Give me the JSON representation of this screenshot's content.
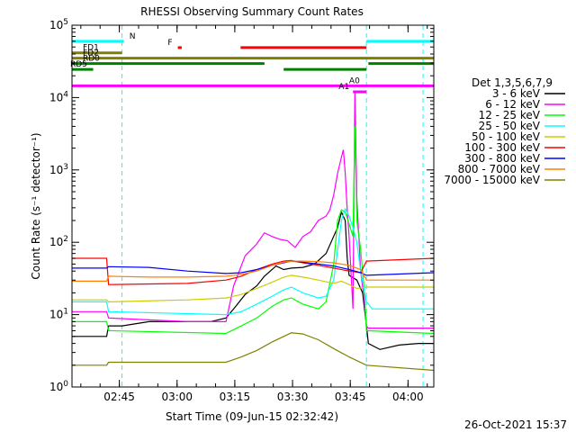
{
  "chart_data": {
    "type": "line",
    "title": "RHESSI Observing Summary Count Rates",
    "xlabel": "Start Time (09-Jun-15 02:32:42)",
    "ylabel": "Count Rate (s⁻¹ detector⁻¹)",
    "y_scale": "log",
    "ylim": [
      1,
      100000
    ],
    "xlim_minutes_from_start": [
      0,
      94
    ],
    "x_ticks": [
      {
        "label": "02:45",
        "t": 12.3
      },
      {
        "label": "03:00",
        "t": 27.3
      },
      {
        "label": "03:15",
        "t": 42.3
      },
      {
        "label": "03:30",
        "t": 57.3
      },
      {
        "label": "03:45",
        "t": 72.3
      },
      {
        "label": "04:00",
        "t": 87.3
      }
    ],
    "y_ticks": [
      {
        "exp": 0,
        "value": 1
      },
      {
        "exp": 1,
        "value": 10
      },
      {
        "exp": 2,
        "value": 100
      },
      {
        "exp": 3,
        "value": 1000
      },
      {
        "exp": 4,
        "value": 10000
      },
      {
        "exp": 5,
        "value": 100000
      }
    ],
    "legend_title": "Det 1,3,5,6,7,9",
    "legend_position": "right",
    "vlines_minutes": [
      13.0,
      76.5,
      91.2
    ],
    "series": [
      {
        "name": "3 - 6 keV",
        "color": "#000000",
        "points": [
          [
            0,
            5
          ],
          [
            9,
            5
          ],
          [
            9.5,
            7
          ],
          [
            13,
            7
          ],
          [
            20,
            8
          ],
          [
            30,
            8
          ],
          [
            36,
            8
          ],
          [
            40,
            9
          ],
          [
            42,
            12
          ],
          [
            45,
            19
          ],
          [
            48,
            25
          ],
          [
            50,
            34
          ],
          [
            53,
            47
          ],
          [
            55,
            42
          ],
          [
            57,
            44
          ],
          [
            60,
            45
          ],
          [
            63,
            50
          ],
          [
            66,
            70
          ],
          [
            69,
            160
          ],
          [
            70,
            260
          ],
          [
            71,
            200
          ],
          [
            71.5,
            60
          ],
          [
            72,
            35
          ],
          [
            74,
            30
          ],
          [
            75.5,
            20
          ],
          [
            76.5,
            7
          ],
          [
            77,
            4
          ],
          [
            80,
            3.3
          ],
          [
            85,
            3.8
          ],
          [
            90,
            4
          ],
          [
            94,
            4
          ]
        ]
      },
      {
        "name": "6 - 12 keV",
        "color": "#ff00ff",
        "points": [
          [
            0,
            11
          ],
          [
            9,
            11
          ],
          [
            9.5,
            9
          ],
          [
            30,
            8
          ],
          [
            40,
            8
          ],
          [
            42,
            25
          ],
          [
            45,
            65
          ],
          [
            48,
            95
          ],
          [
            50,
            135
          ],
          [
            52,
            120
          ],
          [
            54,
            110
          ],
          [
            56,
            105
          ],
          [
            58,
            85
          ],
          [
            60,
            120
          ],
          [
            62,
            140
          ],
          [
            64,
            200
          ],
          [
            66,
            230
          ],
          [
            67,
            280
          ],
          [
            68,
            450
          ],
          [
            69,
            900
          ],
          [
            70,
            1500
          ],
          [
            70.5,
            1900
          ],
          [
            71,
            900
          ],
          [
            71.5,
            280
          ],
          [
            72,
            120
          ],
          [
            73,
            12
          ],
          [
            73.5,
            12000
          ],
          [
            74,
            400
          ],
          [
            75,
            40
          ],
          [
            76,
            15
          ],
          [
            76.5,
            7
          ],
          [
            77,
            6.5
          ],
          [
            94,
            6.5
          ]
        ]
      },
      {
        "name": "12 - 25 keV",
        "color": "#00ff00",
        "points": [
          [
            0,
            8
          ],
          [
            9,
            8
          ],
          [
            9.5,
            6
          ],
          [
            40,
            5.5
          ],
          [
            44,
            7
          ],
          [
            48,
            9
          ],
          [
            52,
            13
          ],
          [
            55,
            16
          ],
          [
            57,
            17
          ],
          [
            60,
            14
          ],
          [
            64,
            12
          ],
          [
            66,
            15
          ],
          [
            68,
            50
          ],
          [
            69,
            200
          ],
          [
            70,
            280
          ],
          [
            71,
            260
          ],
          [
            72,
            180
          ],
          [
            73,
            120
          ],
          [
            73.5,
            4000
          ],
          [
            74,
            200
          ],
          [
            75,
            80
          ],
          [
            76,
            20
          ],
          [
            76.5,
            6
          ],
          [
            94,
            5.5
          ]
        ]
      },
      {
        "name": "25 - 50 keV",
        "color": "#00ffff",
        "points": [
          [
            0,
            15
          ],
          [
            9,
            15
          ],
          [
            9.5,
            11
          ],
          [
            40,
            10
          ],
          [
            44,
            11
          ],
          [
            48,
            14
          ],
          [
            52,
            18
          ],
          [
            55,
            22
          ],
          [
            57,
            24
          ],
          [
            60,
            20
          ],
          [
            64,
            17
          ],
          [
            66,
            18
          ],
          [
            68,
            30
          ],
          [
            70,
            200
          ],
          [
            71,
            290
          ],
          [
            72,
            230
          ],
          [
            73,
            160
          ],
          [
            74,
            100
          ],
          [
            75,
            40
          ],
          [
            76.5,
            15
          ],
          [
            78,
            12
          ],
          [
            94,
            12
          ]
        ]
      },
      {
        "name": "50 - 100 keV",
        "color": "#cccc00",
        "points": [
          [
            0,
            16
          ],
          [
            9,
            16
          ],
          [
            9.5,
            15
          ],
          [
            30,
            16
          ],
          [
            40,
            17
          ],
          [
            44,
            19
          ],
          [
            48,
            23
          ],
          [
            52,
            28
          ],
          [
            55,
            33
          ],
          [
            57,
            35
          ],
          [
            60,
            33
          ],
          [
            64,
            30
          ],
          [
            68,
            27
          ],
          [
            70,
            29
          ],
          [
            72,
            26
          ],
          [
            74,
            23
          ],
          [
            76.5,
            24
          ],
          [
            94,
            24
          ]
        ]
      },
      {
        "name": "100 - 300 keV",
        "color": "#ff0000",
        "points": [
          [
            0,
            60
          ],
          [
            9,
            60
          ],
          [
            9.5,
            26
          ],
          [
            30,
            27
          ],
          [
            40,
            30
          ],
          [
            44,
            34
          ],
          [
            48,
            42
          ],
          [
            52,
            50
          ],
          [
            55,
            55
          ],
          [
            57,
            56
          ],
          [
            60,
            52
          ],
          [
            64,
            48
          ],
          [
            68,
            44
          ],
          [
            72,
            40
          ],
          [
            75,
            38
          ],
          [
            76.5,
            55
          ],
          [
            94,
            60
          ]
        ]
      },
      {
        "name": "300 - 800 keV",
        "color": "#0000ff",
        "points": [
          [
            0,
            44
          ],
          [
            9,
            44
          ],
          [
            9.5,
            46
          ],
          [
            20,
            45
          ],
          [
            30,
            40
          ],
          [
            40,
            37
          ],
          [
            44,
            38
          ],
          [
            48,
            42
          ],
          [
            52,
            48
          ],
          [
            55,
            52
          ],
          [
            57,
            55
          ],
          [
            60,
            53
          ],
          [
            64,
            50
          ],
          [
            68,
            47
          ],
          [
            72,
            42
          ],
          [
            75,
            38
          ],
          [
            76.5,
            35
          ],
          [
            94,
            38
          ]
        ]
      },
      {
        "name": "800 - 7000 keV",
        "color": "#ff8000",
        "points": [
          [
            0,
            29
          ],
          [
            9,
            29
          ],
          [
            9.5,
            34
          ],
          [
            20,
            33
          ],
          [
            30,
            33
          ],
          [
            40,
            34
          ],
          [
            44,
            36
          ],
          [
            48,
            40
          ],
          [
            52,
            48
          ],
          [
            55,
            53
          ],
          [
            57,
            55
          ],
          [
            60,
            55
          ],
          [
            64,
            54
          ],
          [
            68,
            52
          ],
          [
            72,
            48
          ],
          [
            75,
            42
          ],
          [
            76.5,
            30
          ],
          [
            94,
            30
          ]
        ]
      },
      {
        "name": "7000 - 15000 keV",
        "color": "#808000",
        "points": [
          [
            0,
            2
          ],
          [
            9,
            2
          ],
          [
            9.5,
            2.2
          ],
          [
            40,
            2.2
          ],
          [
            44,
            2.6
          ],
          [
            48,
            3.2
          ],
          [
            52,
            4.2
          ],
          [
            55,
            5
          ],
          [
            57,
            5.6
          ],
          [
            60,
            5.4
          ],
          [
            64,
            4.5
          ],
          [
            68,
            3.4
          ],
          [
            72,
            2.6
          ],
          [
            76.5,
            2
          ],
          [
            94,
            1.7
          ]
        ]
      }
    ],
    "flags": [
      {
        "label": "N",
        "color": "#00ffff",
        "y": 60000,
        "segments": [
          [
            0,
            13.5
          ],
          [
            76.5,
            94
          ]
        ]
      },
      {
        "label": "F",
        "color": "#ff0000",
        "y": 49000,
        "segments": [
          [
            27.5,
            28.5
          ],
          [
            43.8,
            76.5
          ]
        ]
      },
      {
        "label": "FD1",
        "color": "#808000",
        "y": 41500,
        "segments": [
          [
            0,
            13
          ]
        ]
      },
      {
        "label": "FD2",
        "color": "#808000",
        "y": 35000,
        "segments": [
          [
            0,
            94
          ]
        ]
      },
      {
        "label": "RD0",
        "color": "#008000",
        "y": 29500,
        "segments": [
          [
            0,
            50
          ],
          [
            77,
            94
          ]
        ]
      },
      {
        "label": "RD5",
        "color": "#008000",
        "y": 24500,
        "segments": [
          [
            0,
            5.5
          ],
          [
            55,
            76.5
          ]
        ]
      },
      {
        "label": "A0",
        "color": "#ff00ff",
        "y": 14500,
        "segments": [
          [
            0,
            94
          ]
        ]
      },
      {
        "label": "A1",
        "color": "#ff00ff",
        "y": 12000,
        "segments": [
          [
            73,
            76.5
          ]
        ]
      }
    ]
  },
  "footer": {
    "timestamp": "26-Oct-2021 15:37"
  }
}
